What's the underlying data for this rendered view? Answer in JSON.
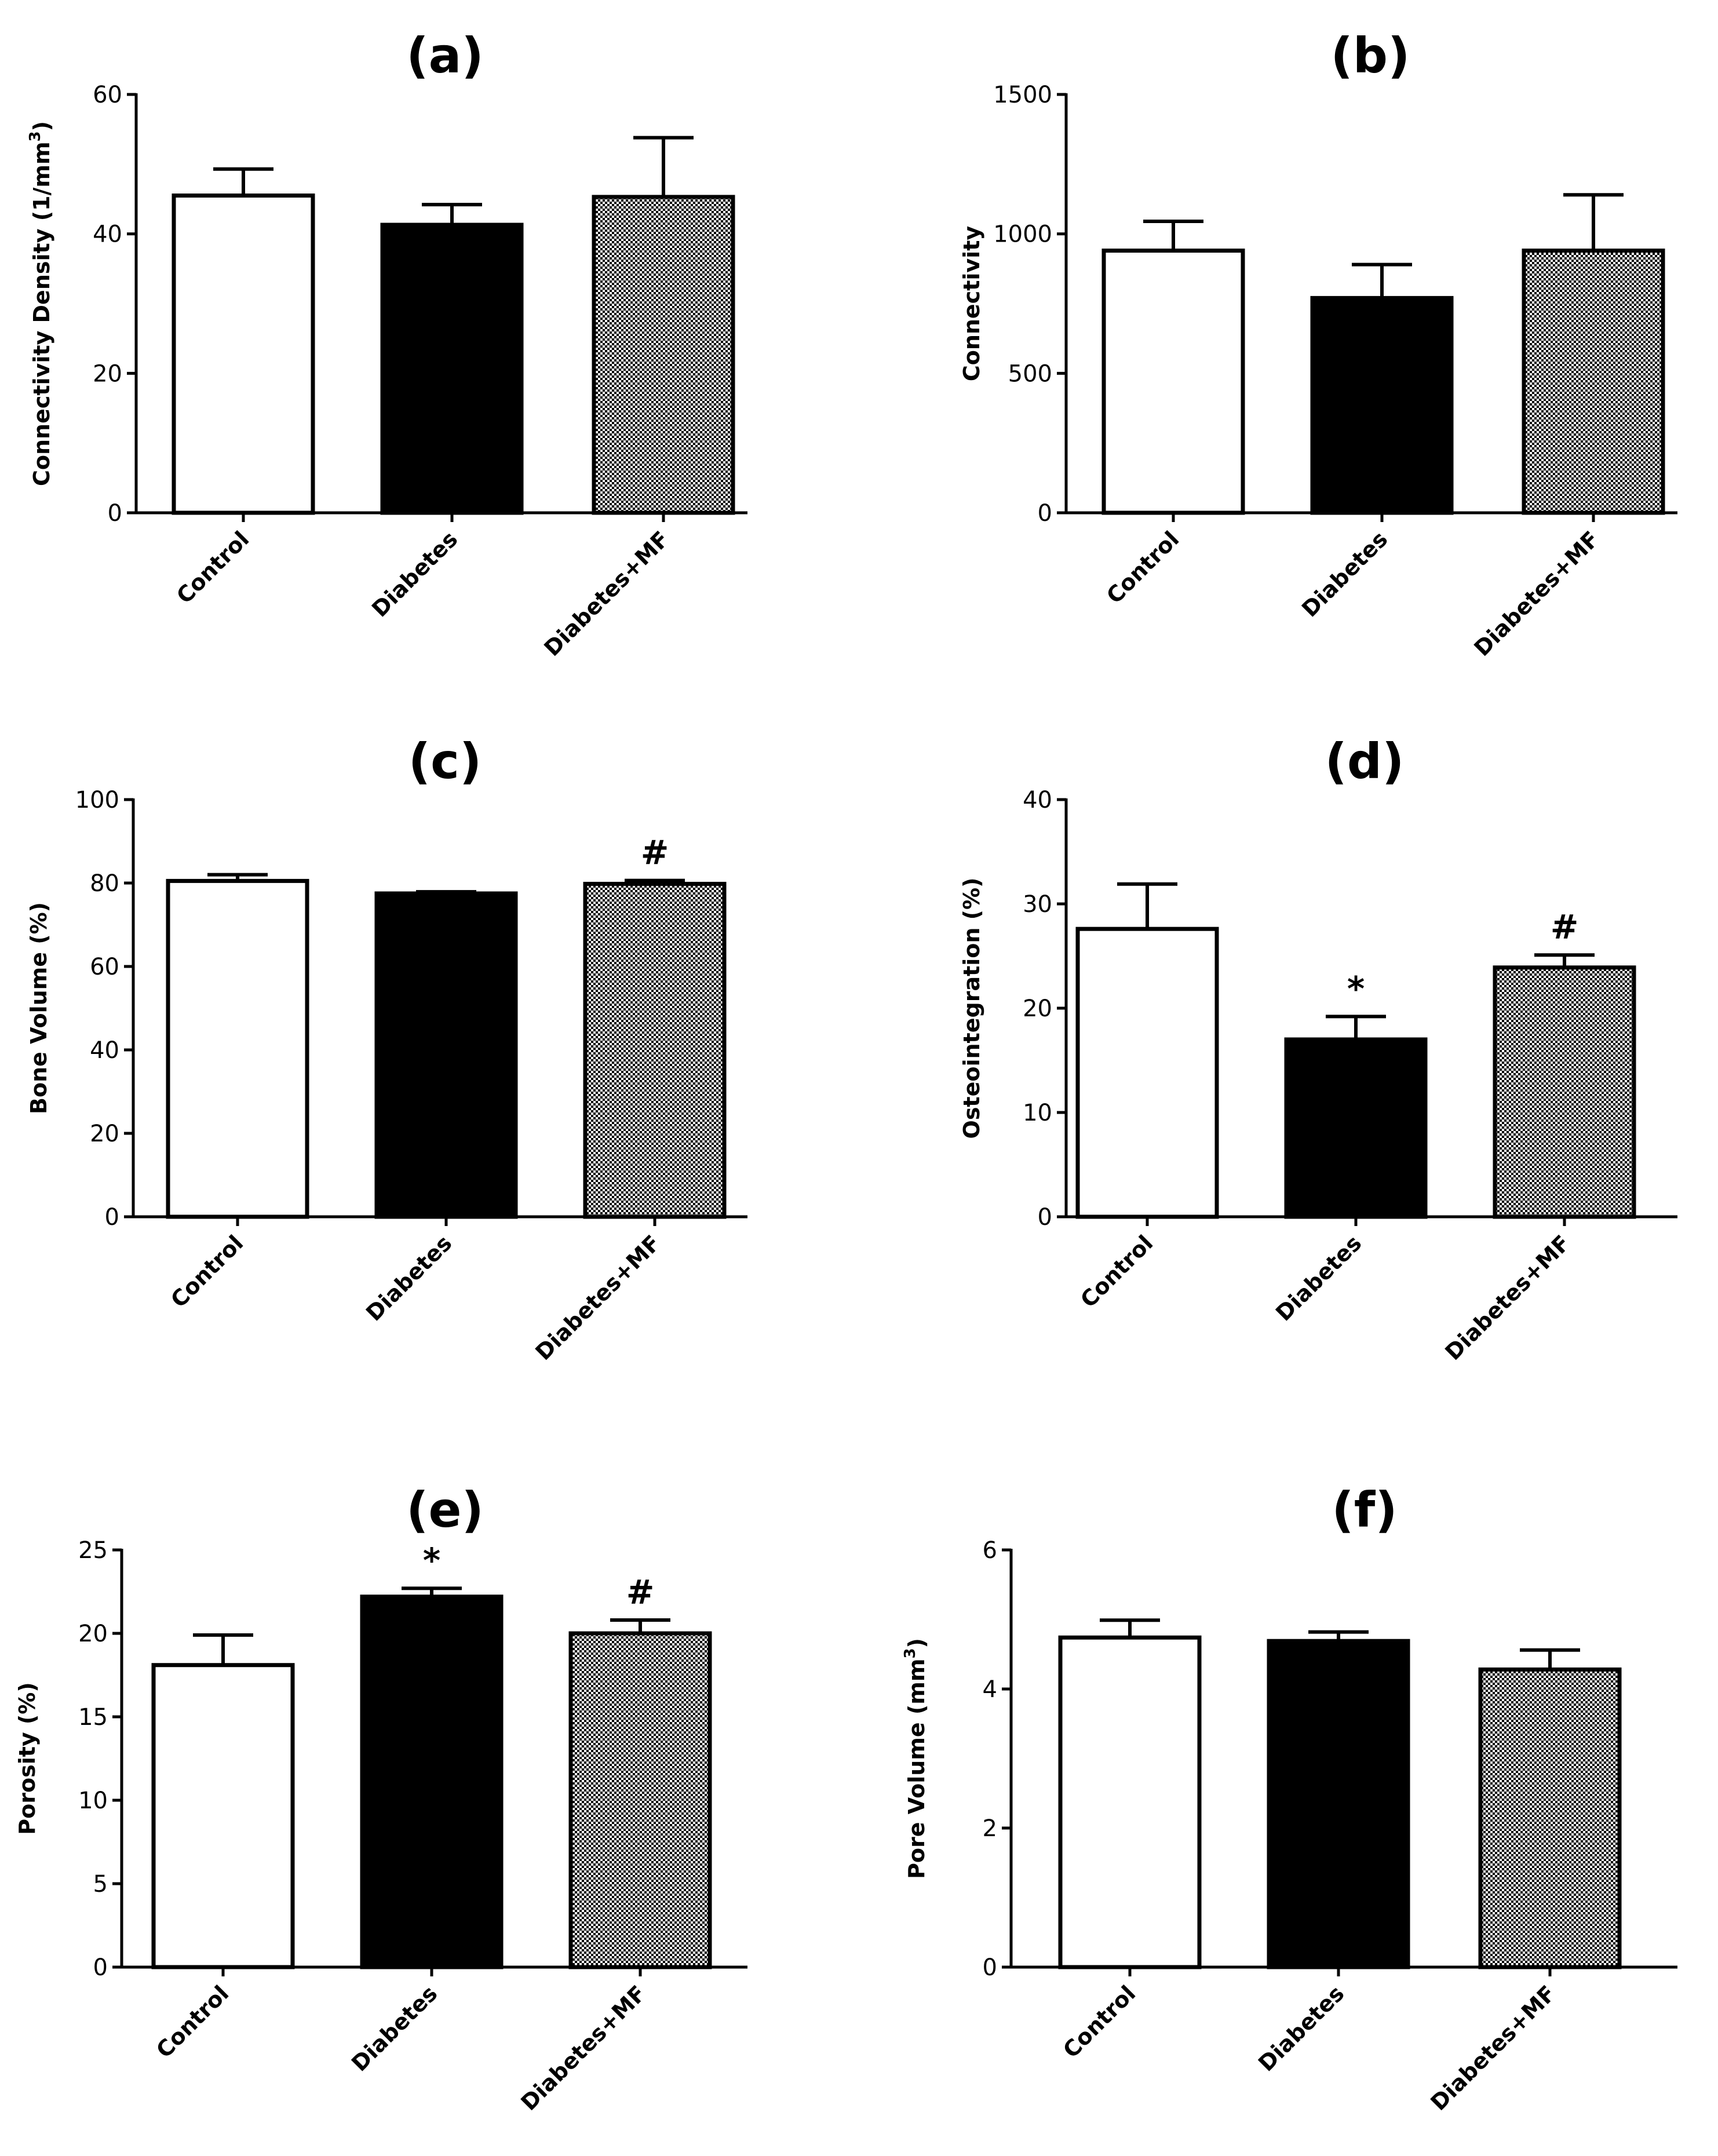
{
  "chart_data": [
    {
      "panel": "a",
      "type": "bar",
      "title": "(a)",
      "ylabel": "Connectivity Density (1/mm",
      "ylabel_sup": "3",
      "ylabel_end": ")",
      "categories": [
        "Control",
        "Diabetes",
        "Diabetes+MF"
      ],
      "values": [
        45.5,
        41.3,
        45.3
      ],
      "errors": [
        3.8,
        2.9,
        8.5
      ],
      "annotations": [
        "",
        "",
        ""
      ],
      "ylim": [
        0,
        60
      ],
      "yticks": [
        0,
        20,
        40,
        60
      ]
    },
    {
      "panel": "b",
      "type": "bar",
      "title": "(b)",
      "ylabel": "Connectivity",
      "categories": [
        "Control",
        "Diabetes",
        "Diabetes+MF"
      ],
      "values": [
        940,
        770,
        940
      ],
      "errors": [
        105,
        120,
        200
      ],
      "annotations": [
        "",
        "",
        ""
      ],
      "ylim": [
        0,
        1500
      ],
      "yticks": [
        0,
        500,
        1000,
        1500
      ]
    },
    {
      "panel": "c",
      "type": "bar",
      "title": "(c)",
      "ylabel": "Bone Volume (%)",
      "categories": [
        "Control",
        "Diabetes",
        "Diabetes+MF"
      ],
      "values": [
        80.5,
        77.5,
        79.8
      ],
      "errors": [
        1.5,
        0.4,
        0.8
      ],
      "annotations": [
        "",
        "",
        "#"
      ],
      "ylim": [
        0,
        100
      ],
      "yticks": [
        0,
        20,
        40,
        60,
        80,
        100
      ]
    },
    {
      "panel": "d",
      "type": "bar",
      "title": "(d)",
      "ylabel": "Osteointegration (%)",
      "categories": [
        "Control",
        "Diabetes",
        "Diabetes+MF"
      ],
      "values": [
        27.6,
        17.0,
        23.9
      ],
      "errors": [
        4.3,
        2.2,
        1.2
      ],
      "annotations": [
        "",
        "*",
        "#"
      ],
      "ylim": [
        0,
        40
      ],
      "yticks": [
        0,
        10,
        20,
        30,
        40
      ]
    },
    {
      "panel": "e",
      "type": "bar",
      "title": "(e)",
      "ylabel": "Porosity  (%)",
      "categories": [
        "Control",
        "Diabetes",
        "Diabetes+MF"
      ],
      "values": [
        18.1,
        22.2,
        20.0
      ],
      "errors": [
        1.8,
        0.5,
        0.8
      ],
      "annotations": [
        "",
        "*",
        "#"
      ],
      "ylim": [
        0,
        25
      ],
      "yticks": [
        0,
        5,
        10,
        15,
        20,
        25
      ]
    },
    {
      "panel": "f",
      "type": "bar",
      "title": "(f)",
      "ylabel": "Pore Volume (mm",
      "ylabel_sup": "3",
      "ylabel_end": ")",
      "categories": [
        "Control",
        "Diabetes",
        "Diabetes+MF"
      ],
      "values": [
        4.74,
        4.69,
        4.28
      ],
      "errors": [
        0.25,
        0.13,
        0.28
      ],
      "annotations": [
        "",
        "",
        ""
      ],
      "ylim": [
        0,
        6
      ],
      "yticks": [
        0,
        2,
        4,
        6
      ]
    }
  ],
  "colors": {
    "control_fill": "#ffffff",
    "diabetes_fill": "#000000",
    "mf_fill": "checkered",
    "stroke": "#000000"
  }
}
